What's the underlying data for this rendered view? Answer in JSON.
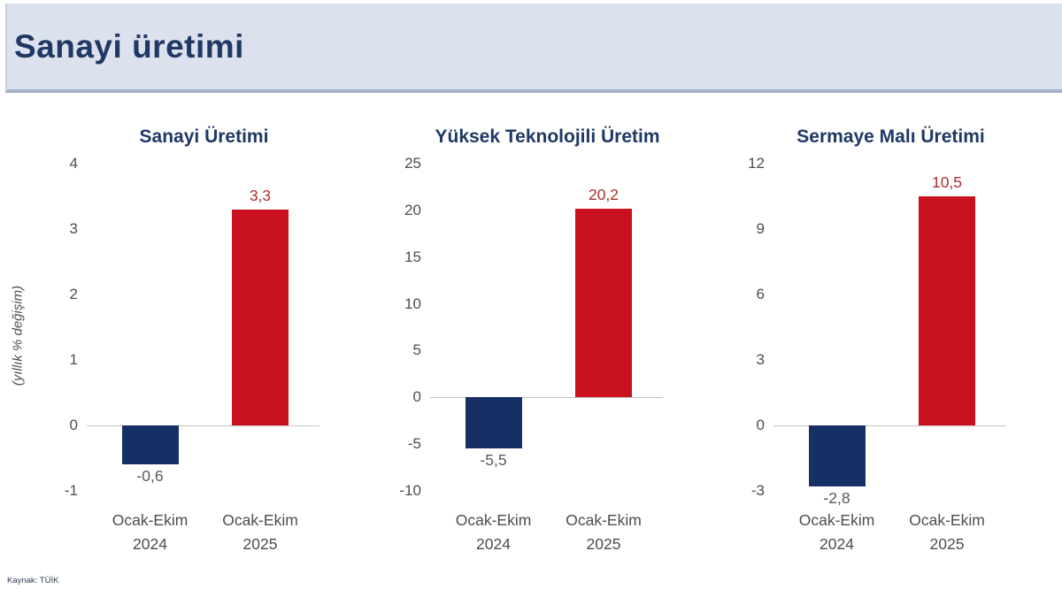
{
  "header": {
    "title": "Sanayi üretimi"
  },
  "footer": {
    "source": "Kaynak: TÜİK"
  },
  "colors": {
    "navy_bar": "#163066",
    "red_bar": "#c8101e",
    "red_label": "#b02e2e",
    "gray_label": "#595959",
    "title_navy": "#1f3864",
    "header_bg": "#dbe2ee",
    "axis_line": "#c3c3c3"
  },
  "chart_data": [
    {
      "type": "bar",
      "title": "Sanayi Üretimi",
      "ylabel": "(yıllık % değişim)",
      "categories": [
        [
          "Ocak-Ekim",
          "2024"
        ],
        [
          "Ocak-Ekim",
          "2025"
        ]
      ],
      "values": [
        -0.6,
        3.3
      ],
      "value_labels": [
        "-0,6",
        "3,3"
      ],
      "label_colors": [
        "#595959",
        "#b02e2e"
      ],
      "bar_colors": [
        "#163066",
        "#c8101e"
      ],
      "ticks": [
        4,
        3,
        2,
        1,
        0,
        -1
      ],
      "ylim": [
        -1,
        4
      ],
      "grid": false,
      "legend": false
    },
    {
      "type": "bar",
      "title": "Yüksek Teknolojili Üretim",
      "ylabel": "",
      "categories": [
        [
          "Ocak-Ekim",
          "2024"
        ],
        [
          "Ocak-Ekim",
          "2025"
        ]
      ],
      "values": [
        -5.5,
        20.2
      ],
      "value_labels": [
        "-5,5",
        "20,2"
      ],
      "label_colors": [
        "#595959",
        "#b02e2e"
      ],
      "bar_colors": [
        "#163066",
        "#c8101e"
      ],
      "ticks": [
        25,
        20,
        15,
        10,
        5,
        0,
        -5,
        -10
      ],
      "ylim": [
        -10,
        25
      ],
      "grid": false,
      "legend": false
    },
    {
      "type": "bar",
      "title": "Sermaye Malı Üretimi",
      "ylabel": "",
      "categories": [
        [
          "Ocak-Ekim",
          "2024"
        ],
        [
          "Ocak-Ekim",
          "2025"
        ]
      ],
      "values": [
        -2.8,
        10.5
      ],
      "value_labels": [
        "-2,8",
        "10,5"
      ],
      "label_colors": [
        "#595959",
        "#b02e2e"
      ],
      "bar_colors": [
        "#163066",
        "#c8101e"
      ],
      "ticks": [
        12,
        9,
        6,
        3,
        0,
        -3
      ],
      "ylim": [
        -3,
        12
      ],
      "grid": false,
      "legend": false
    }
  ]
}
